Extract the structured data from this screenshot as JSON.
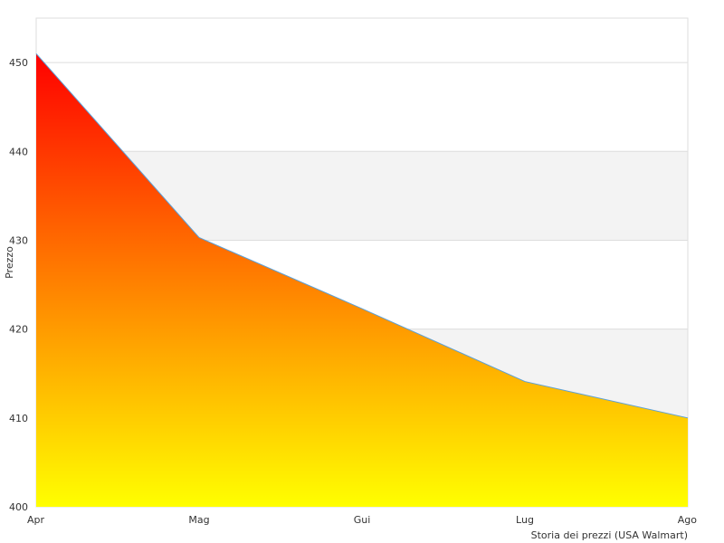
{
  "chart_data": {
    "type": "area",
    "categories": [
      "Apr",
      "Mag",
      "Gui",
      "Lug",
      "Ago"
    ],
    "values": [
      451,
      430.3,
      422.3,
      414.1,
      410
    ],
    "ylabel": "Prezzo",
    "xlabel": "Storia dei prezzi (USA Walmart)",
    "ylim": [
      400,
      455
    ],
    "yticks": [
      400,
      410,
      420,
      430,
      440,
      450
    ],
    "grid": true,
    "banded_rows": true,
    "colors": {
      "fill_top": "#ff0000",
      "fill_bottom": "#ffff00",
      "line": "#5aa0d8",
      "band": "#f3f3f3",
      "gridline": "#dddddd",
      "frame": "#dddddd"
    }
  }
}
